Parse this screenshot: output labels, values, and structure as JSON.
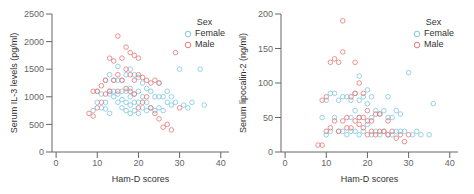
{
  "chart_data": [
    {
      "type": "scatter",
      "xlabel": "Ham-D scores",
      "ylabel": "Serum IL-3 levels (pg/ml)",
      "xlim": [
        -1,
        42
      ],
      "ylim": [
        0,
        2500
      ],
      "xticks": [
        0,
        10,
        20,
        30,
        40
      ],
      "yticks": [
        0,
        500,
        1000,
        1500,
        2000,
        2500
      ],
      "legend": "upper right",
      "legend_title": "Sex",
      "marker": "o",
      "series": [
        {
          "name": "Female",
          "color": "#7ec8e3",
          "x": [
            9,
            10,
            10,
            11,
            11,
            12,
            12,
            12,
            13,
            13,
            13,
            13,
            14,
            14,
            14,
            15,
            15,
            15,
            15,
            16,
            16,
            16,
            16,
            17,
            17,
            17,
            17,
            18,
            18,
            18,
            18,
            18,
            19,
            19,
            19,
            19,
            20,
            20,
            20,
            20,
            21,
            21,
            21,
            22,
            22,
            22,
            23,
            23,
            24,
            24,
            25,
            25,
            25,
            26,
            26,
            27,
            27,
            28,
            28,
            29,
            30,
            31,
            32,
            33,
            35,
            36
          ],
          "values": [
            750,
            900,
            1100,
            800,
            1050,
            780,
            900,
            1300,
            700,
            1050,
            1100,
            1400,
            1000,
            1100,
            1300,
            900,
            1050,
            1300,
            1550,
            800,
            950,
            1100,
            1300,
            750,
            900,
            1100,
            1400,
            700,
            850,
            1000,
            1150,
            1500,
            750,
            900,
            1050,
            1400,
            700,
            900,
            1100,
            1350,
            800,
            1000,
            1250,
            750,
            900,
            1150,
            800,
            1100,
            750,
            1000,
            800,
            1000,
            1250,
            750,
            1000,
            900,
            1100,
            850,
            1000,
            900,
            1500,
            850,
            800,
            900,
            1500,
            850
          ]
        },
        {
          "name": "Male",
          "color": "#e87878",
          "x": [
            8,
            9,
            9,
            10,
            10,
            11,
            11,
            12,
            12,
            13,
            13,
            14,
            14,
            15,
            15,
            15,
            16,
            16,
            17,
            17,
            17,
            18,
            18,
            18,
            19,
            19,
            19,
            20,
            20,
            20,
            21,
            21,
            22,
            22,
            23,
            23,
            24,
            24,
            25,
            25,
            26,
            27,
            28,
            29,
            30
          ],
          "values": [
            700,
            650,
            1100,
            800,
            1100,
            900,
            1200,
            1050,
            1300,
            1100,
            1700,
            1300,
            1650,
            1400,
            1100,
            2100,
            1700,
            1300,
            1900,
            1500,
            1150,
            1800,
            1400,
            1100,
            1750,
            1300,
            1050,
            1700,
            1400,
            800,
            1350,
            900,
            1300,
            1000,
            1250,
            800,
            1300,
            700,
            1250,
            600,
            450,
            500,
            400,
            1800,
            800
          ]
        }
      ]
    },
    {
      "type": "scatter",
      "xlabel": "Ham-D scores",
      "ylabel": "Serum lipocalin-2 (ng/ml)",
      "xlim": [
        -1,
        42
      ],
      "ylim": [
        0,
        200
      ],
      "xticks": [
        0,
        10,
        20,
        30,
        40
      ],
      "yticks": [
        0,
        50,
        100,
        150,
        200
      ],
      "legend": "upper right",
      "legend_title": "Sex",
      "marker": "o",
      "series": [
        {
          "name": "Female",
          "color": "#7ec8e3",
          "x": [
            9,
            10,
            10,
            11,
            11,
            12,
            12,
            13,
            13,
            14,
            14,
            15,
            15,
            16,
            16,
            16,
            17,
            17,
            17,
            18,
            18,
            18,
            18,
            19,
            19,
            20,
            20,
            20,
            21,
            21,
            21,
            22,
            22,
            23,
            23,
            24,
            24,
            25,
            25,
            25,
            26,
            26,
            27,
            27,
            28,
            28,
            29,
            30,
            31,
            32,
            33,
            35,
            36
          ],
          "values": [
            50,
            25,
            75,
            30,
            85,
            50,
            85,
            30,
            75,
            30,
            80,
            25,
            80,
            30,
            75,
            50,
            30,
            60,
            85,
            25,
            50,
            75,
            110,
            30,
            80,
            40,
            70,
            90,
            25,
            50,
            80,
            30,
            60,
            25,
            55,
            30,
            60,
            25,
            50,
            80,
            25,
            50,
            30,
            60,
            30,
            55,
            30,
            115,
            25,
            30,
            25,
            25,
            70
          ]
        },
        {
          "name": "Male",
          "color": "#e87878",
          "x": [
            8,
            9,
            9,
            10,
            10,
            11,
            11,
            12,
            12,
            13,
            13,
            14,
            14,
            14,
            15,
            15,
            16,
            16,
            17,
            17,
            17,
            18,
            18,
            18,
            19,
            19,
            19,
            20,
            20,
            20,
            21,
            21,
            22,
            22,
            23,
            23,
            24,
            25,
            25,
            26,
            27,
            28,
            29,
            30
          ],
          "values": [
            10,
            75,
            10,
            30,
            80,
            35,
            130,
            45,
            135,
            30,
            130,
            45,
            145,
            190,
            50,
            35,
            80,
            35,
            85,
            45,
            130,
            50,
            40,
            100,
            50,
            35,
            85,
            45,
            25,
            60,
            30,
            45,
            25,
            55,
            30,
            55,
            30,
            25,
            45,
            30,
            20,
            25,
            15,
            25
          ]
        }
      ]
    }
  ]
}
